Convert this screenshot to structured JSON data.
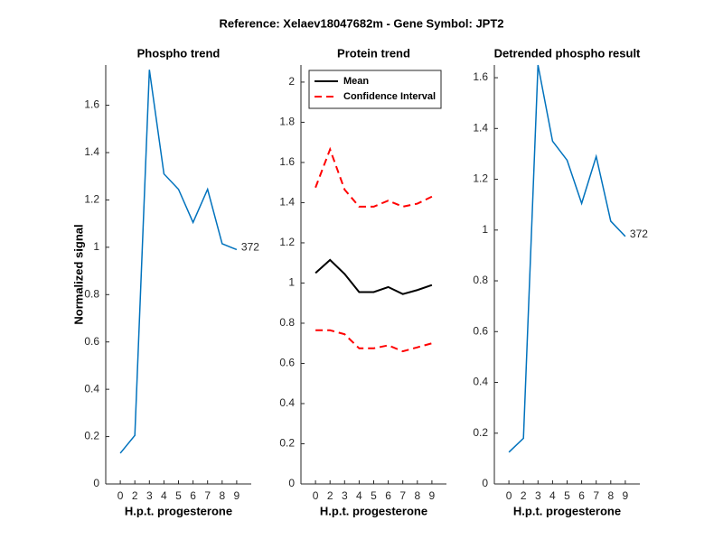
{
  "title": "Reference:  Xelaev18047682m - Gene Symbol:  JPT2",
  "chart_data": [
    {
      "type": "line",
      "title": "Phospho trend",
      "x_label": "H.p.t. progesterone",
      "y_label": "Normalized signal",
      "categories": [
        "0",
        "2",
        "3",
        "4",
        "5",
        "6",
        "7",
        "8",
        "9"
      ],
      "series": [
        {
          "color": "#0072bd",
          "values": [
            0.13,
            0.205,
            1.75,
            1.31,
            1.245,
            1.105,
            1.245,
            1.015,
            0.99
          ]
        }
      ],
      "annotation": "372",
      "ylim": [
        0,
        1.77
      ],
      "yticks": [
        0,
        0.2,
        0.4,
        0.6,
        0.8,
        1,
        1.2,
        1.4,
        1.6
      ]
    },
    {
      "type": "line",
      "title": "Protein trend",
      "x_label": "H.p.t. progesterone",
      "categories": [
        "0",
        "2",
        "3",
        "4",
        "5",
        "6",
        "7",
        "8",
        "9"
      ],
      "series": [
        {
          "name": "Mean",
          "color": "#000000",
          "dash": false,
          "values": [
            1.05,
            1.115,
            1.045,
            0.955,
            0.955,
            0.98,
            0.945,
            0.965,
            0.99
          ]
        },
        {
          "name": "Confidence Interval",
          "color": "#ff0000",
          "dash": true,
          "values": [
            1.475,
            1.665,
            1.465,
            1.38,
            1.38,
            1.41,
            1.38,
            1.395,
            1.43
          ]
        },
        {
          "color": "#ff0000",
          "dash": true,
          "values": [
            0.765,
            0.765,
            0.745,
            0.675,
            0.675,
            0.69,
            0.66,
            0.68,
            0.7
          ]
        }
      ],
      "legend": "northwest",
      "ylim": [
        0,
        2.085
      ],
      "yticks": [
        0,
        0.2,
        0.4,
        0.6,
        0.8,
        1,
        1.2,
        1.4,
        1.6,
        1.8,
        2
      ]
    },
    {
      "type": "line",
      "title": "Detrended phospho result",
      "x_label": "H.p.t. progesterone",
      "categories": [
        "0",
        "2",
        "3",
        "4",
        "5",
        "6",
        "7",
        "8",
        "9"
      ],
      "series": [
        {
          "color": "#0072bd",
          "values": [
            0.125,
            0.18,
            1.65,
            1.35,
            1.275,
            1.105,
            1.29,
            1.035,
            0.975
          ]
        }
      ],
      "annotation": "372",
      "ylim": [
        0,
        1.65
      ],
      "yticks": [
        0,
        0.2,
        0.4,
        0.6,
        0.8,
        1,
        1.2,
        1.4,
        1.6
      ]
    }
  ]
}
